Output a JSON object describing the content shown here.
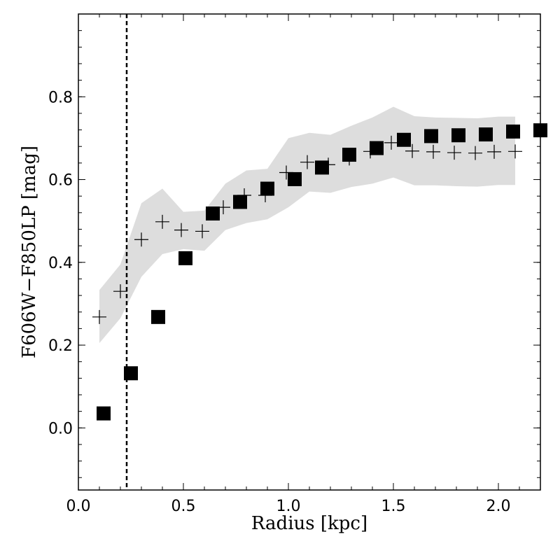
{
  "chart_data": {
    "type": "scatter",
    "title": "",
    "xlabel": "Radius [kpc]",
    "ylabel": "F606W−F850LP [mag]",
    "xlim": [
      0.0,
      2.2
    ],
    "ylim": [
      -0.15,
      1.0
    ],
    "xticks": [
      0.0,
      0.5,
      1.0,
      1.5,
      2.0
    ],
    "xtick_labels": [
      "0.0",
      "0.5",
      "1.0",
      "1.5",
      "2.0"
    ],
    "yticks": [
      0.0,
      0.2,
      0.4,
      0.6,
      0.8
    ],
    "ytick_labels": [
      "0.0",
      "0.2",
      "0.4",
      "0.6",
      "0.8"
    ],
    "x_minor_step": 0.1,
    "y_minor_step": 0.04,
    "grid": false,
    "vline": {
      "x": 0.23,
      "style": "dashed"
    },
    "series": [
      {
        "name": "squares",
        "marker": "square",
        "color": "#000000",
        "x": [
          0.12,
          0.25,
          0.38,
          0.51,
          0.64,
          0.77,
          0.9,
          1.03,
          1.16,
          1.29,
          1.42,
          1.55,
          1.68,
          1.81,
          1.94,
          2.07,
          2.2
        ],
        "y": [
          0.035,
          0.132,
          0.268,
          0.41,
          0.518,
          0.546,
          0.578,
          0.601,
          0.629,
          0.66,
          0.676,
          0.696,
          0.705,
          0.707,
          0.709,
          0.716,
          0.719
        ]
      },
      {
        "name": "crosses",
        "marker": "plus",
        "color": "#000000",
        "x": [
          0.1,
          0.2,
          0.3,
          0.4,
          0.49,
          0.59,
          0.69,
          0.79,
          0.89,
          0.99,
          1.09,
          1.19,
          1.29,
          1.39,
          1.49,
          1.59,
          1.69,
          1.79,
          1.89,
          1.98,
          2.08
        ],
        "y": [
          0.268,
          0.33,
          0.455,
          0.498,
          0.478,
          0.475,
          0.533,
          0.562,
          0.562,
          0.617,
          0.642,
          0.636,
          0.651,
          0.668,
          0.689,
          0.669,
          0.667,
          0.665,
          0.664,
          0.667,
          0.668
        ]
      }
    ],
    "band": {
      "color": "#dddddd",
      "x": [
        0.1,
        0.2,
        0.3,
        0.4,
        0.5,
        0.6,
        0.7,
        0.8,
        0.9,
        1.0,
        1.1,
        1.2,
        1.3,
        1.4,
        1.5,
        1.6,
        1.7,
        1.8,
        1.9,
        2.0,
        2.08
      ],
      "upper": [
        0.333,
        0.395,
        0.543,
        0.578,
        0.522,
        0.525,
        0.59,
        0.622,
        0.626,
        0.7,
        0.713,
        0.708,
        0.73,
        0.75,
        0.776,
        0.753,
        0.75,
        0.749,
        0.748,
        0.752,
        0.752
      ],
      "lower": [
        0.205,
        0.265,
        0.365,
        0.42,
        0.432,
        0.428,
        0.478,
        0.495,
        0.504,
        0.533,
        0.571,
        0.568,
        0.582,
        0.59,
        0.605,
        0.586,
        0.586,
        0.584,
        0.583,
        0.587,
        0.587
      ]
    }
  }
}
